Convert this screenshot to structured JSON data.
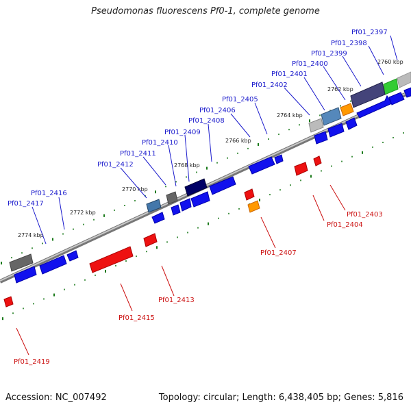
{
  "header": {
    "title": "Pseudomonas fluorescens Pf0-1, complete genome"
  },
  "footer": {
    "accession": "Accession: NC_007492",
    "genome_info": "Topology: circular; Length: 6,438,405 bp; Genes: 5,816"
  },
  "colors": {
    "forward_label": "#1a1acc",
    "reverse_label": "#cc1111",
    "forward_gene": "#1111ee",
    "reverse_gene": "#ee1111",
    "tick": "#1a7a1a",
    "axis": "#888888"
  },
  "scale": {
    "start_kbp": 2758,
    "end_kbp": 2776,
    "labels": [
      "2760 kbp",
      "2762 kbp",
      "2764 kbp",
      "2766 kbp",
      "2768 kbp",
      "2770 kbp",
      "2772 kbp",
      "2774 kbp"
    ]
  },
  "forward_genes": [
    {
      "label": "Pf01_2397",
      "kbp": 2760.1,
      "color": "#33cc33"
    },
    {
      "label": "Pf01_2398",
      "kbp": 2760.7,
      "color": "#44447a"
    },
    {
      "label": "Pf01_2399",
      "kbp": 2761.3,
      "color": "#1111ee"
    },
    {
      "label": "Pf01_2400",
      "kbp": 2762.1,
      "color": "#ff9900"
    },
    {
      "label": "Pf01_2401",
      "kbp": 2762.5,
      "color": "#5588bb"
    },
    {
      "label": "Pf01_2402",
      "kbp": 2763.1,
      "color": "#bbbbbb"
    },
    {
      "label": "Pf01_2405",
      "kbp": 2764.3,
      "color": "#1111ee"
    },
    {
      "label": "Pf01_2406",
      "kbp": 2766.2,
      "color": "#1111ee"
    },
    {
      "label": "Pf01_2408",
      "kbp": 2766.9,
      "color": "#1111ee"
    },
    {
      "label": "Pf01_2409",
      "kbp": 2767.6,
      "color": "#000066"
    },
    {
      "label": "Pf01_2410",
      "kbp": 2768.1,
      "color": "#1111ee"
    },
    {
      "label": "Pf01_2411",
      "kbp": 2768.5,
      "color": "#666666"
    },
    {
      "label": "Pf01_2412",
      "kbp": 2769.3,
      "color": "#4477aa"
    },
    {
      "label": "Pf01_2416",
      "kbp": 2772.4,
      "color": "#1111ee"
    },
    {
      "label": "Pf01_2417",
      "kbp": 2773.2,
      "color": "#666666"
    }
  ],
  "reverse_genes": [
    {
      "label": "Pf01_2403",
      "kbp": 2763.5,
      "color": "#ee1111"
    },
    {
      "label": "Pf01_2404",
      "kbp": 2764.0,
      "color": "#ee1111"
    },
    {
      "label": "Pf01_2407",
      "kbp": 2766.2,
      "color": "#ff9900"
    },
    {
      "label": "Pf01_2413",
      "kbp": 2770.3,
      "color": "#ee1111"
    },
    {
      "label": "Pf01_2415",
      "kbp": 2771.5,
      "color": "#ee1111"
    },
    {
      "label": "Pf01_2419",
      "kbp": 2775.1,
      "color": "#ee1111"
    }
  ]
}
